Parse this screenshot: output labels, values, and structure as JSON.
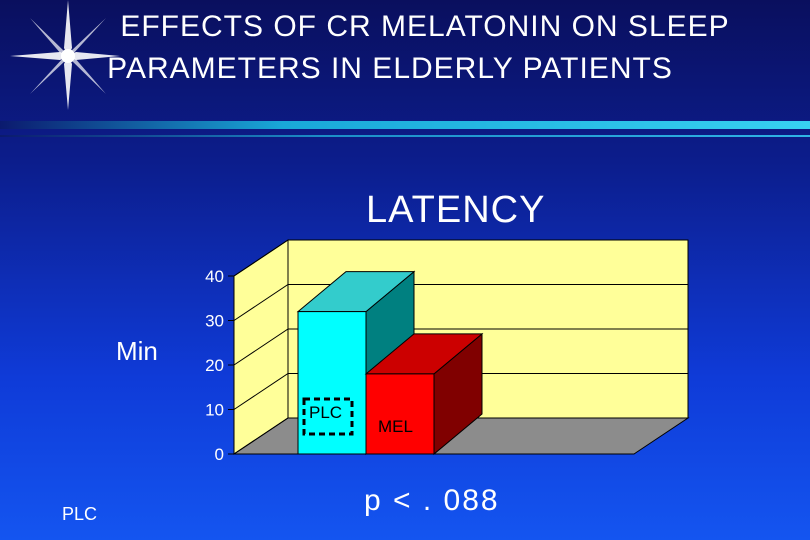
{
  "slide": {
    "title_line1": "EFFECTS OF CR MELATONIN ON SLEEP",
    "title_line2": "PARAMETERS IN ELDERLY PATIENTS",
    "footer": "PLC",
    "p_value": "p < . 088"
  },
  "colors": {
    "background_top": "#0a0f5e",
    "background_bottom": "#1455f0",
    "wall": "#ffff99",
    "floor": "#8c8c8c",
    "plc_bar": "#00ffff",
    "mel_bar": "#ff0000"
  },
  "chart_data": {
    "type": "bar",
    "title": "LATENCY",
    "ylabel": "Min",
    "xlabel": "",
    "ylim": [
      0,
      40
    ],
    "yticks": [
      "0",
      "10",
      "20",
      "30",
      "40"
    ],
    "categories": [
      "PLC",
      "MEL"
    ],
    "values": [
      32,
      18
    ],
    "bar_colors": [
      "#00ffff",
      "#ff0000"
    ],
    "grid": true,
    "style": "3d"
  }
}
